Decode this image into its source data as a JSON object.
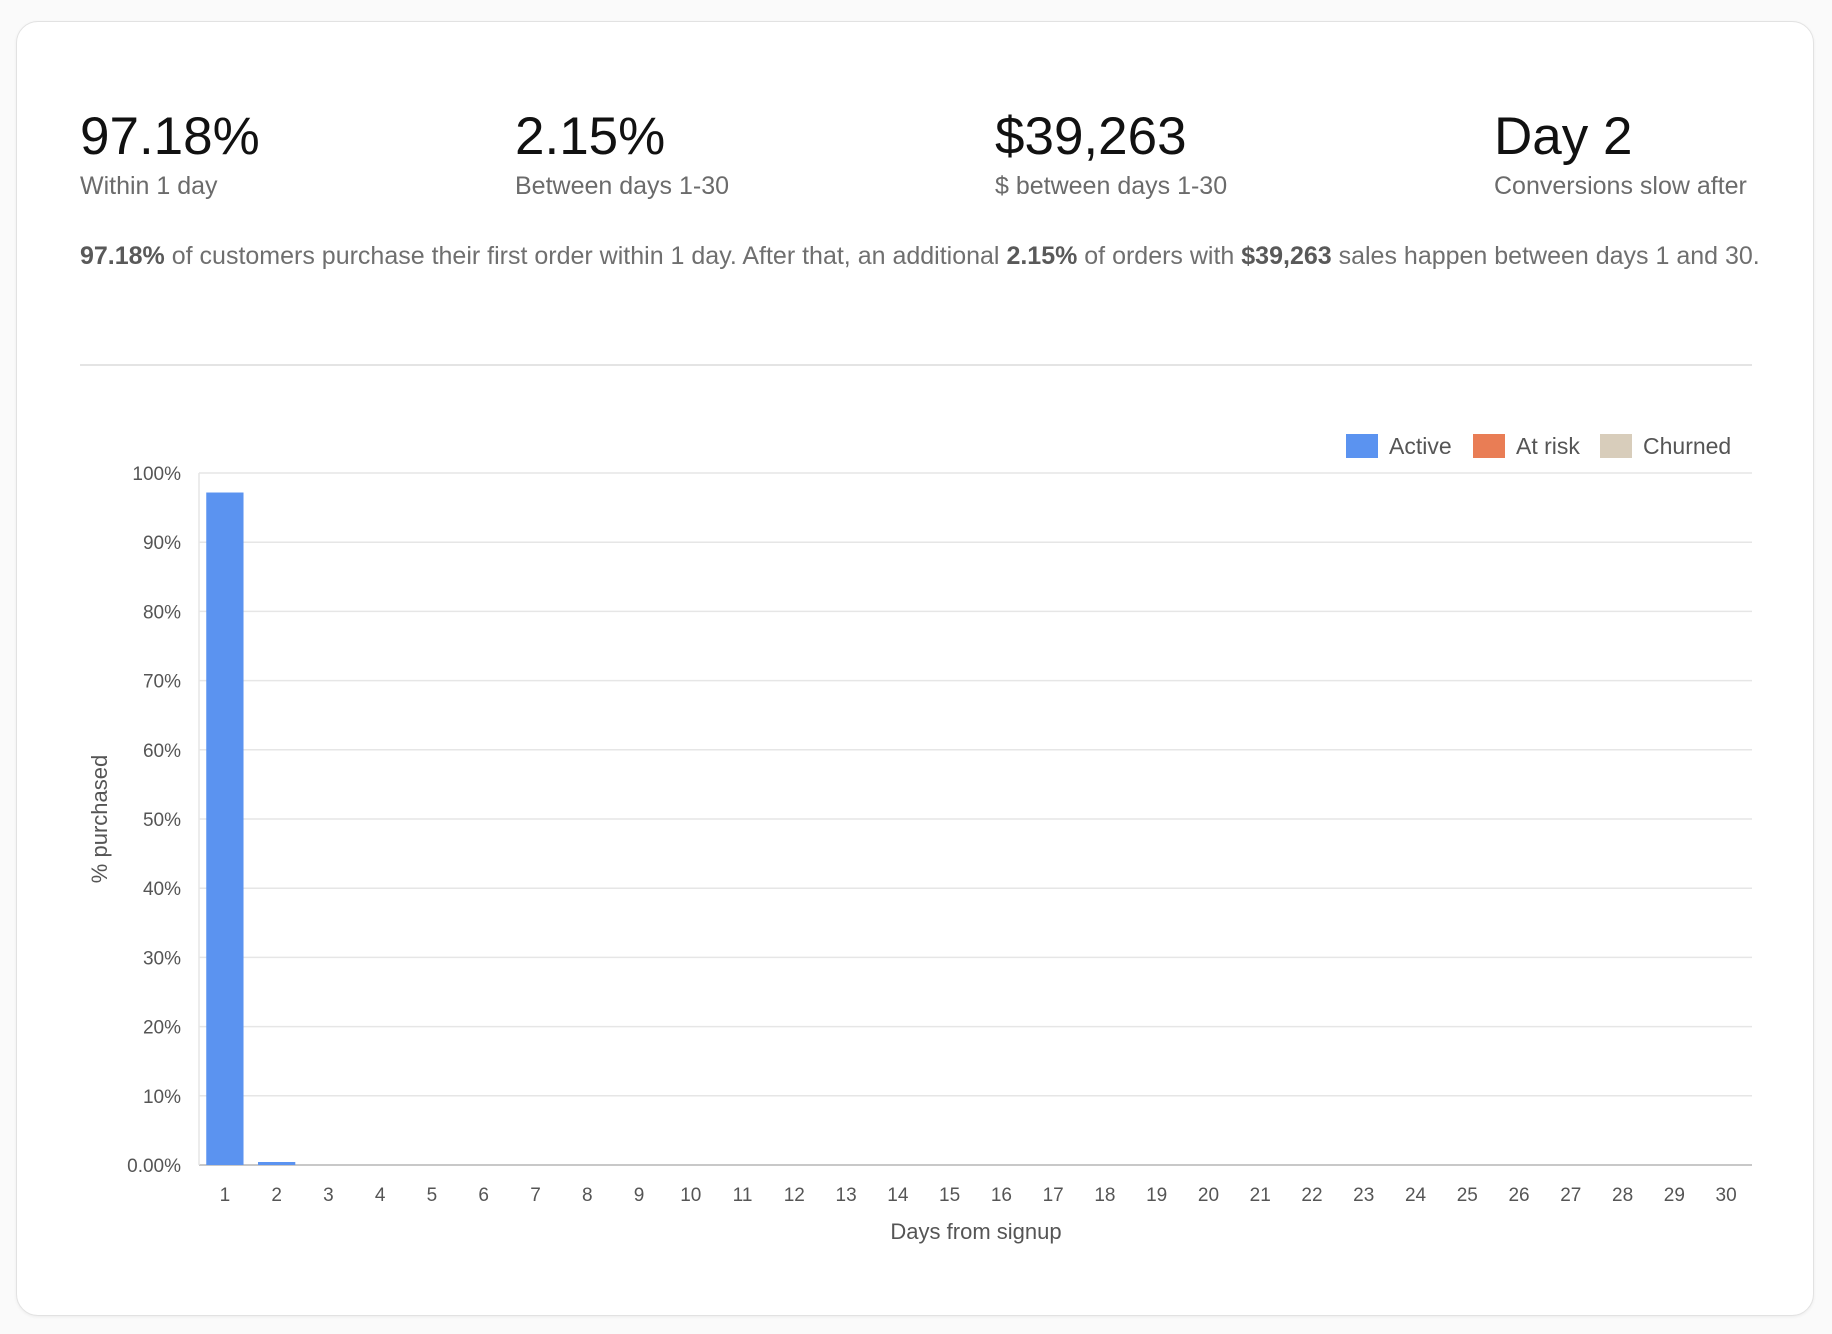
{
  "stats": [
    {
      "value": "97.18%",
      "label": "Within 1 day"
    },
    {
      "value": "2.15%",
      "label": "Between days 1-30"
    },
    {
      "value": "$39,263",
      "label": "$ between days 1-30"
    },
    {
      "value": "Day 2",
      "label": "Conversions slow after"
    }
  ],
  "summary": {
    "p1": "97.18%",
    "t1": " of customers purchase their first order within 1 day. After that, an additional ",
    "p2": "2.15%",
    "t2": " of orders with ",
    "p3": "$39,263",
    "t3": " sales happen between days 1 and 30."
  },
  "chart_data": {
    "type": "bar",
    "xlabel": "Days from signup",
    "ylabel": "% purchased",
    "ylim": [
      0,
      100
    ],
    "yticks": [
      "0.00%",
      "10%",
      "20%",
      "30%",
      "40%",
      "50%",
      "60%",
      "70%",
      "80%",
      "90%",
      "100%"
    ],
    "categories": [
      "1",
      "2",
      "3",
      "4",
      "5",
      "6",
      "7",
      "8",
      "9",
      "10",
      "11",
      "12",
      "13",
      "14",
      "15",
      "16",
      "17",
      "18",
      "19",
      "20",
      "21",
      "22",
      "23",
      "24",
      "25",
      "26",
      "27",
      "28",
      "29",
      "30"
    ],
    "series": [
      {
        "name": "Active",
        "color": "#5b93f0",
        "values": [
          97.18,
          0.4,
          0,
          0,
          0,
          0,
          0,
          0,
          0,
          0,
          0,
          0,
          0,
          0,
          0,
          0,
          0,
          0,
          0,
          0,
          0,
          0,
          0,
          0,
          0,
          0,
          0,
          0,
          0,
          0
        ]
      },
      {
        "name": "At risk",
        "color": "#e97d55",
        "values": [
          0,
          0,
          0,
          0,
          0,
          0,
          0,
          0,
          0,
          0,
          0,
          0,
          0,
          0,
          0,
          0,
          0,
          0,
          0,
          0,
          0,
          0,
          0,
          0,
          0,
          0,
          0,
          0,
          0,
          0
        ]
      },
      {
        "name": "Churned",
        "color": "#d8cdbb",
        "values": [
          0,
          0,
          0,
          0,
          0,
          0,
          0,
          0,
          0,
          0,
          0,
          0,
          0,
          0,
          0,
          0,
          0,
          0,
          0,
          0,
          0,
          0,
          0,
          0,
          0,
          0,
          0,
          0,
          0,
          0
        ]
      }
    ],
    "legend": "top-right",
    "grid": true
  }
}
